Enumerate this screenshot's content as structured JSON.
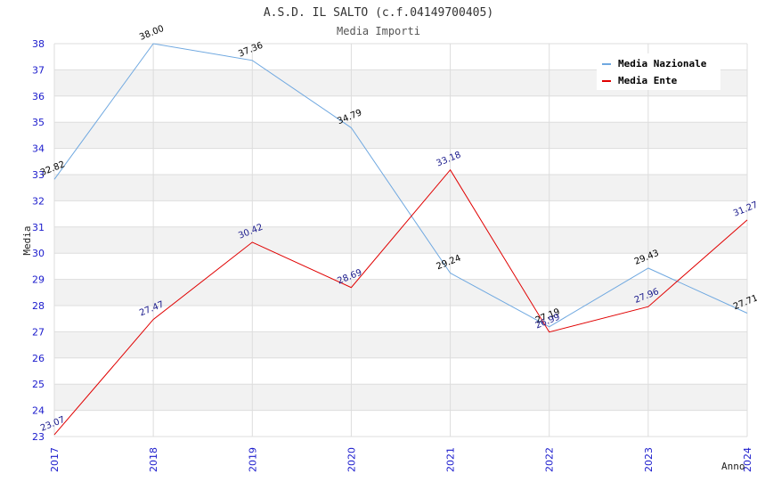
{
  "chart_data": {
    "type": "line",
    "title": "A.S.D. IL SALTO (c.f.04149700405)",
    "subtitle": "Media Importi",
    "xlabel": "Anno",
    "ylabel": "Media",
    "categories": [
      "2017",
      "2018",
      "2019",
      "2020",
      "2021",
      "2022",
      "2023",
      "2024"
    ],
    "ylim": [
      23,
      38
    ],
    "yticks": [
      "23",
      "24",
      "25",
      "26",
      "27",
      "28",
      "29",
      "30",
      "31",
      "32",
      "33",
      "34",
      "35",
      "36",
      "37",
      "38"
    ],
    "grid": true,
    "legend_position": "top-right",
    "series": [
      {
        "name": "Media Nazionale",
        "color": "#6fa8e0",
        "label_color": "#000000",
        "values": [
          32.82,
          38.0,
          37.36,
          34.79,
          29.24,
          27.19,
          29.43,
          27.71
        ],
        "labels": [
          "32.82",
          "38.00",
          "37.36",
          "34.79",
          "29.24",
          "27.19",
          "29.43",
          "27.71"
        ]
      },
      {
        "name": "Media Ente",
        "color": "#e00000",
        "label_color": "#1a1a8c",
        "values": [
          23.07,
          27.47,
          30.42,
          28.69,
          33.18,
          26.99,
          27.96,
          31.27
        ],
        "labels": [
          "23.07",
          "27.47",
          "30.42",
          "28.69",
          "33.18",
          "26.99",
          "27.96",
          "31.27"
        ]
      }
    ]
  }
}
